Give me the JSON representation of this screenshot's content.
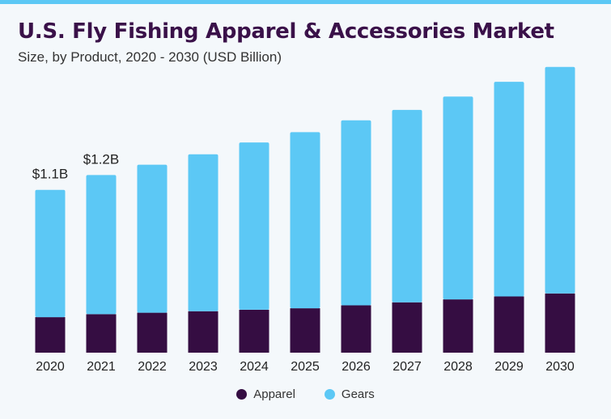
{
  "header": {
    "title": "U.S. Fly Fishing Apparel & Accessories Market",
    "subtitle": "Size, by Product, 2020 - 2030 (USD Billion)"
  },
  "colors": {
    "accent": "#5cc8f5",
    "apparel": "#350d42",
    "gears": "#5cc8f5"
  },
  "chart_data": {
    "type": "bar",
    "stacked": true,
    "title": "U.S. Fly Fishing Apparel & Accessories Market",
    "subtitle": "Size, by Product, 2020 - 2030 (USD Billion)",
    "categories": [
      "2020",
      "2021",
      "2022",
      "2023",
      "2024",
      "2025",
      "2026",
      "2027",
      "2028",
      "2029",
      "2030"
    ],
    "series": [
      {
        "name": "Apparel",
        "color": "#350d42",
        "values": [
          0.24,
          0.26,
          0.27,
          0.28,
          0.29,
          0.3,
          0.32,
          0.34,
          0.36,
          0.38,
          0.4
        ]
      },
      {
        "name": "Gears",
        "color": "#5cc8f5",
        "values": [
          0.86,
          0.94,
          1.0,
          1.06,
          1.13,
          1.19,
          1.25,
          1.3,
          1.37,
          1.45,
          1.53
        ]
      }
    ],
    "data_labels": [
      {
        "category": "2020",
        "text": "$1.1B"
      },
      {
        "category": "2021",
        "text": "$1.2B"
      }
    ],
    "ylim": [
      0,
      2.0
    ],
    "xlabel": "",
    "ylabel": "",
    "grid": false,
    "legend_position": "bottom-center"
  }
}
